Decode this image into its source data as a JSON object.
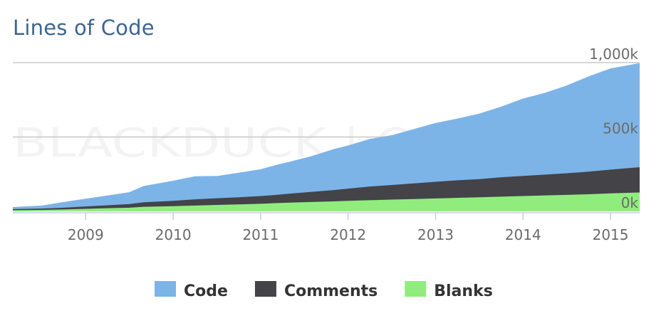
{
  "chart_data": {
    "type": "area",
    "stacked": true,
    "title": "Lines of Code",
    "xlabel": "",
    "ylabel": "",
    "x_ticks": [
      "2009",
      "2010",
      "2011",
      "2012",
      "2013",
      "2014",
      "2015"
    ],
    "y_ticks": [
      "0k",
      "500k",
      "1,000k"
    ],
    "y_tick_values": [
      0,
      500000,
      1000000
    ],
    "ylim": [
      0,
      1000000
    ],
    "xlim": [
      "2008-03",
      "2015-05"
    ],
    "grid": "horizontal",
    "legend": "bottom-center",
    "watermark": "BLACKDUCK | Open HUB",
    "x": [
      "2008-03",
      "2008-07",
      "2008-10",
      "2009-01",
      "2009-04",
      "2009-07",
      "2009-09",
      "2010-01",
      "2010-04",
      "2010-07",
      "2010-10",
      "2011-01",
      "2011-03",
      "2011-05",
      "2011-08",
      "2011-11",
      "2012-01",
      "2012-04",
      "2012-07",
      "2012-10",
      "2013-01",
      "2013-04",
      "2013-07",
      "2013-10",
      "2014-01",
      "2014-04",
      "2014-07",
      "2014-10",
      "2015-01",
      "2015-05"
    ],
    "series": [
      {
        "name": "Code",
        "color": "#7db4e8",
        "values": [
          14000,
          20000,
          38000,
          52000,
          66000,
          80000,
          110000,
          135000,
          155000,
          150000,
          165000,
          180000,
          200000,
          215000,
          240000,
          275000,
          290000,
          320000,
          335000,
          365000,
          395000,
          415000,
          440000,
          475000,
          520000,
          550000,
          590000,
          640000,
          680000,
          700000
        ]
      },
      {
        "name": "Comments",
        "color": "#434348",
        "values": [
          7000,
          9000,
          12000,
          16000,
          20000,
          24000,
          30000,
          36000,
          42000,
          45000,
          48000,
          52000,
          55000,
          60000,
          68000,
          76000,
          82000,
          92000,
          98000,
          105000,
          112000,
          118000,
          122000,
          130000,
          135000,
          140000,
          145000,
          152000,
          160000,
          170000
        ]
      },
      {
        "name": "Blanks",
        "color": "#90ed7d",
        "values": [
          3000,
          5000,
          8000,
          12000,
          16000,
          20000,
          26000,
          30000,
          34000,
          38000,
          42000,
          46000,
          50000,
          54000,
          58000,
          62000,
          66000,
          70000,
          74000,
          78000,
          82000,
          86000,
          90000,
          94000,
          98000,
          102000,
          106000,
          110000,
          116000,
          122000
        ]
      }
    ]
  }
}
